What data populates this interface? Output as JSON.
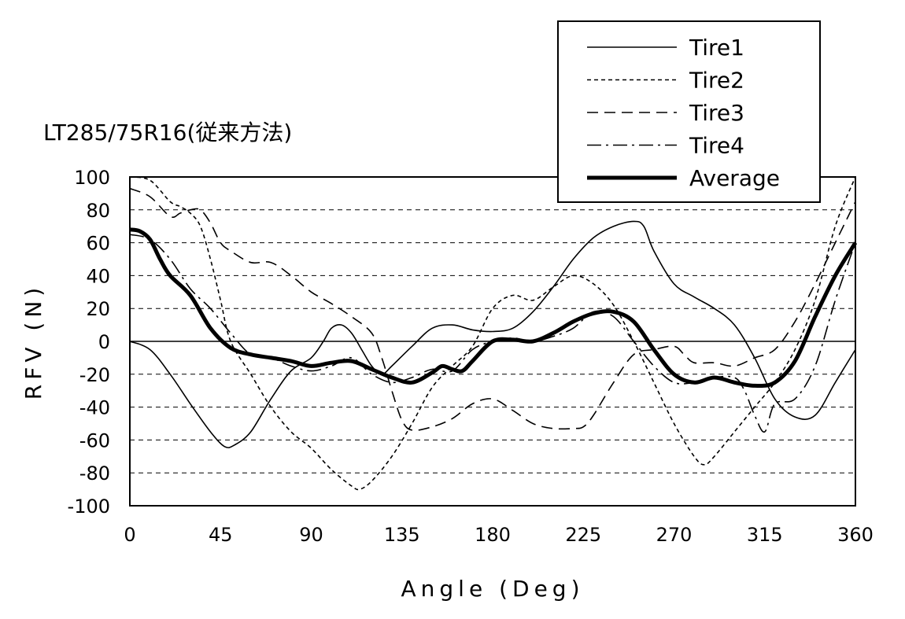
{
  "chart_data": {
    "type": "line",
    "title": "LT285/75R16(従来方法)",
    "xlabel": "Angle (Deg)",
    "ylabel": "RFV (N)",
    "xlim": [
      0,
      360
    ],
    "ylim": [
      -100,
      100
    ],
    "xticks": [
      0,
      45,
      90,
      135,
      180,
      225,
      270,
      315,
      360
    ],
    "yticks": [
      100,
      80,
      60,
      40,
      20,
      0,
      -20,
      -40,
      -60,
      -80,
      -100
    ],
    "grid": "horizontal dashed",
    "legend_position": "top-right",
    "series": [
      {
        "name": "Tire1",
        "style": "solid-thin",
        "x": [
          0,
          10,
          20,
          30,
          40,
          47,
          52,
          60,
          70,
          80,
          90,
          96,
          100,
          105,
          110,
          115,
          120,
          125,
          130,
          140,
          150,
          160,
          170,
          180,
          190,
          200,
          210,
          220,
          230,
          240,
          250,
          255,
          260,
          270,
          280,
          290,
          300,
          310,
          320,
          330,
          340,
          350,
          360
        ],
        "y": [
          0,
          -5,
          -20,
          -38,
          -55,
          -64,
          -63,
          -55,
          -35,
          -18,
          -10,
          0,
          8,
          10,
          5,
          -5,
          -15,
          -20,
          -15,
          -3,
          8,
          10,
          7,
          6,
          8,
          18,
          33,
          50,
          63,
          70,
          73,
          70,
          55,
          35,
          27,
          20,
          10,
          -10,
          -35,
          -46,
          -45,
          -25,
          -5
        ]
      },
      {
        "name": "Tire2",
        "style": "dotted",
        "x": [
          0,
          10,
          20,
          25,
          30,
          35,
          40,
          45,
          50,
          60,
          70,
          80,
          90,
          100,
          110,
          114,
          120,
          130,
          140,
          150,
          160,
          170,
          180,
          190,
          200,
          210,
          220,
          230,
          240,
          250,
          260,
          270,
          280,
          285,
          290,
          300,
          310,
          320,
          330,
          340,
          350,
          360
        ],
        "y": [
          100,
          98,
          85,
          82,
          78,
          70,
          50,
          25,
          0,
          -20,
          -40,
          -55,
          -65,
          -78,
          -88,
          -90,
          -85,
          -70,
          -50,
          -28,
          -15,
          -3,
          20,
          28,
          25,
          33,
          40,
          35,
          22,
          0,
          -25,
          -50,
          -70,
          -75,
          -70,
          -55,
          -40,
          -25,
          -5,
          25,
          70,
          100
        ]
      },
      {
        "name": "Tire3",
        "style": "dashed",
        "x": [
          0,
          10,
          20,
          25,
          30,
          35,
          40,
          45,
          50,
          60,
          70,
          80,
          90,
          100,
          110,
          120,
          125,
          130,
          135,
          140,
          150,
          160,
          170,
          180,
          190,
          200,
          210,
          220,
          225,
          230,
          240,
          250,
          260,
          270,
          275,
          280,
          290,
          300,
          310,
          320,
          330,
          340,
          350,
          360
        ],
        "y": [
          93,
          88,
          76,
          78,
          80,
          80,
          72,
          60,
          55,
          48,
          48,
          40,
          30,
          23,
          15,
          5,
          -10,
          -30,
          -48,
          -54,
          -52,
          -47,
          -38,
          -35,
          -42,
          -50,
          -53,
          -53,
          -52,
          -45,
          -25,
          -8,
          -5,
          -3,
          -8,
          -13,
          -13,
          -15,
          -10,
          -5,
          12,
          35,
          60,
          85
        ]
      },
      {
        "name": "Tire4",
        "style": "dash-dot",
        "x": [
          0,
          10,
          20,
          30,
          40,
          50,
          60,
          70,
          80,
          90,
          100,
          110,
          120,
          130,
          140,
          150,
          160,
          170,
          180,
          190,
          200,
          210,
          220,
          230,
          240,
          250,
          260,
          270,
          280,
          290,
          300,
          305,
          310,
          315,
          320,
          330,
          340,
          350,
          360
        ],
        "y": [
          65,
          62,
          50,
          32,
          20,
          5,
          -8,
          -10,
          -15,
          -18,
          -15,
          -10,
          -20,
          -25,
          -22,
          -17,
          -18,
          -5,
          0,
          2,
          0,
          3,
          8,
          18,
          15,
          0,
          -15,
          -25,
          -25,
          -22,
          -22,
          -30,
          -45,
          -55,
          -38,
          -35,
          -15,
          25,
          60
        ]
      },
      {
        "name": "Average",
        "style": "solid-thick",
        "x": [
          0,
          5,
          10,
          15,
          20,
          30,
          40,
          50,
          60,
          70,
          80,
          90,
          100,
          110,
          120,
          130,
          140,
          150,
          155,
          160,
          165,
          170,
          180,
          190,
          200,
          210,
          220,
          230,
          240,
          250,
          260,
          270,
          280,
          290,
          300,
          310,
          320,
          330,
          340,
          350,
          360
        ],
        "y": [
          68,
          67,
          62,
          50,
          40,
          28,
          8,
          -4,
          -8,
          -10,
          -12,
          -15,
          -13,
          -12,
          -17,
          -22,
          -25,
          -19,
          -15,
          -17,
          -18,
          -12,
          0,
          1,
          0,
          5,
          12,
          17,
          18,
          12,
          -5,
          -20,
          -25,
          -22,
          -25,
          -27,
          -25,
          -12,
          15,
          40,
          60
        ]
      }
    ]
  }
}
